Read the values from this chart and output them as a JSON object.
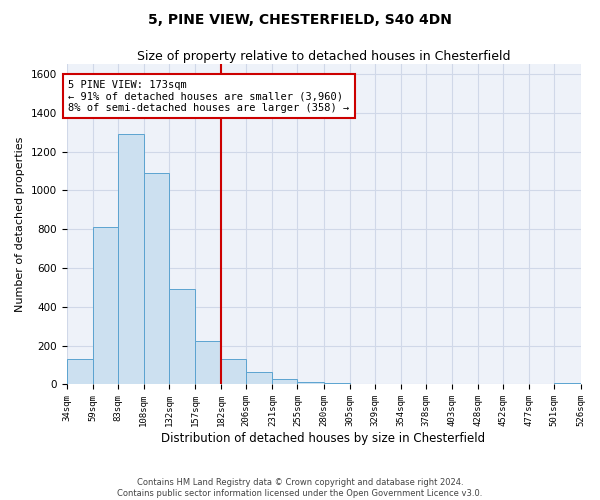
{
  "title1": "5, PINE VIEW, CHESTERFIELD, S40 4DN",
  "title2": "Size of property relative to detached houses in Chesterfield",
  "xlabel": "Distribution of detached houses by size in Chesterfield",
  "ylabel": "Number of detached properties",
  "annotation_line1": "5 PINE VIEW: 173sqm",
  "annotation_line2": "← 91% of detached houses are smaller (3,960)",
  "annotation_line3": "8% of semi-detached houses are larger (358) →",
  "bin_edges": [
    34,
    59,
    83,
    108,
    132,
    157,
    182,
    206,
    231,
    255,
    280,
    305,
    329,
    354,
    378,
    403,
    428,
    452,
    477,
    501,
    526
  ],
  "bar_heights": [
    130,
    810,
    1290,
    1090,
    490,
    225,
    130,
    65,
    30,
    15,
    10,
    5,
    5,
    5,
    5,
    0,
    0,
    0,
    0,
    10
  ],
  "bar_color": "#cce0f0",
  "bar_edge_color": "#5ba3d0",
  "vline_color": "#cc0000",
  "vline_x": 182,
  "box_color": "#cc0000",
  "annotation_fontsize": 7.5,
  "title1_fontsize": 10,
  "title2_fontsize": 9,
  "xlabel_fontsize": 8.5,
  "ylabel_fontsize": 8,
  "grid_color": "#d0d8e8",
  "bg_color": "#eef2f9",
  "footer1": "Contains HM Land Registry data © Crown copyright and database right 2024.",
  "footer2": "Contains public sector information licensed under the Open Government Licence v3.0.",
  "ylim": [
    0,
    1650
  ],
  "yticks": [
    0,
    200,
    400,
    600,
    800,
    1000,
    1200,
    1400,
    1600
  ]
}
